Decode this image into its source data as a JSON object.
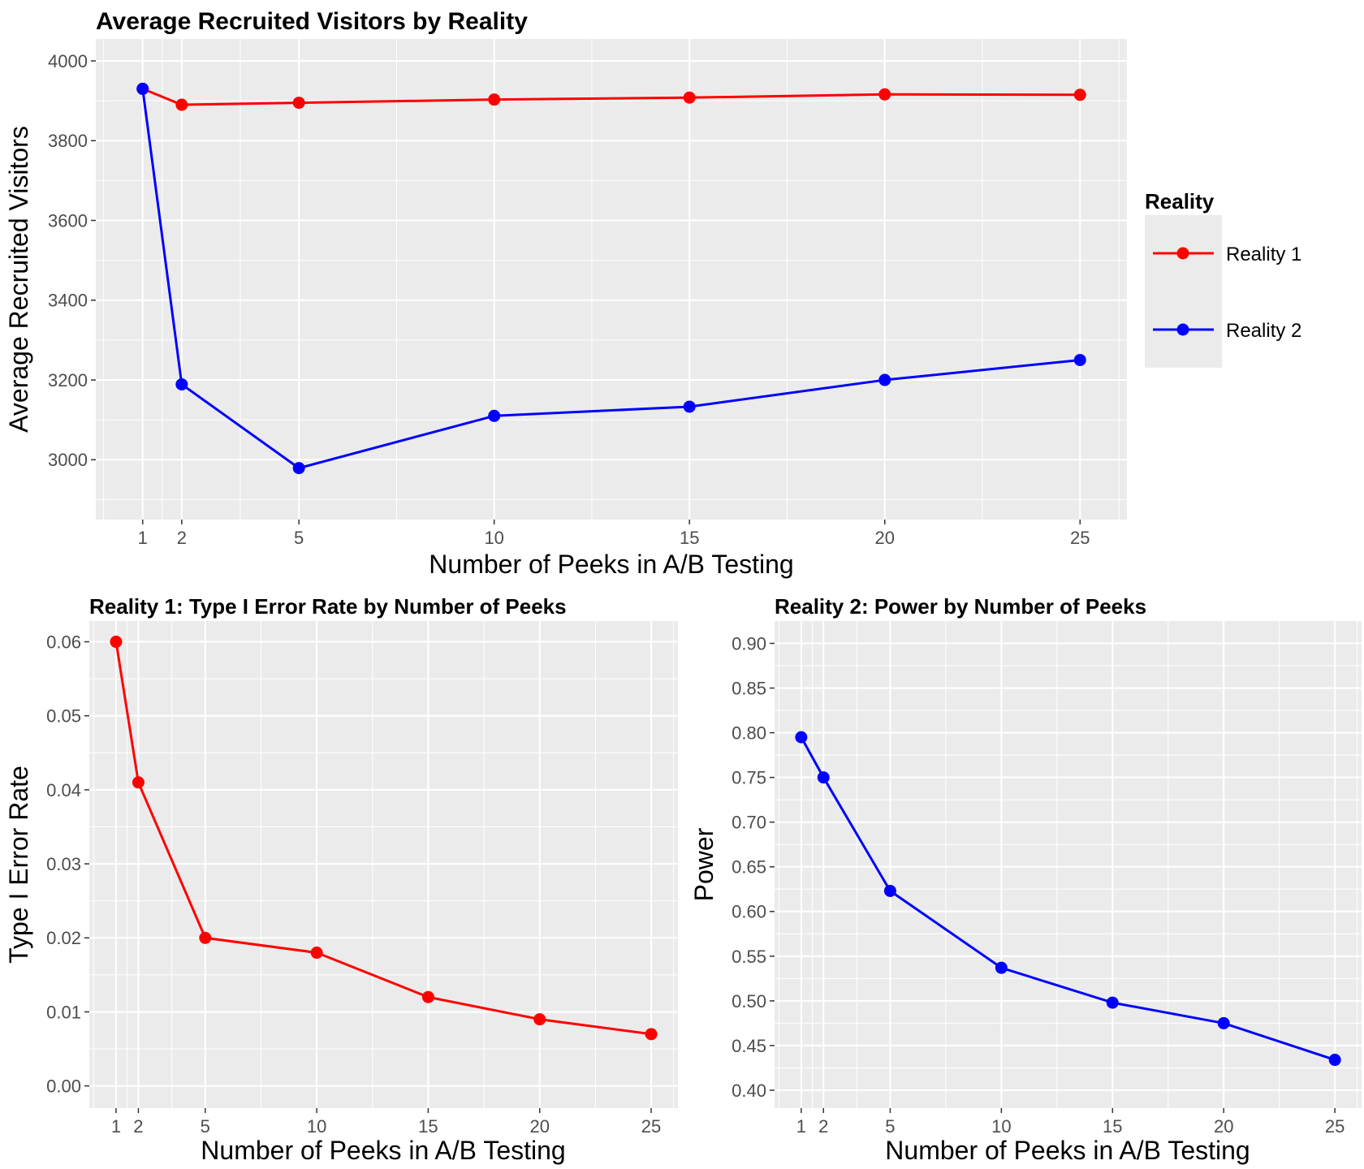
{
  "chart_data": [
    {
      "type": "line",
      "title": "Average Recruited Visitors by Reality",
      "xlabel": "Number of Peeks in A/B Testing",
      "ylabel": "Average Recruited Visitors",
      "x": [
        1,
        2,
        5,
        10,
        15,
        20,
        25
      ],
      "xticks": [
        1,
        2,
        5,
        10,
        15,
        20,
        25
      ],
      "yticks": [
        3000,
        3200,
        3400,
        3600,
        3800,
        4000
      ],
      "xlim": [
        -0.2,
        26.2
      ],
      "ylim": [
        2850,
        4055
      ],
      "grid": true,
      "legend": {
        "title": "Reality",
        "position": "right"
      },
      "series": [
        {
          "name": "Reality 1",
          "color": "#ff0000",
          "values": [
            3930,
            3890,
            3895,
            3903,
            3908,
            3916,
            3915
          ]
        },
        {
          "name": "Reality 2",
          "color": "#0000ff",
          "values": [
            3930,
            3189,
            2979,
            3110,
            3133,
            3200,
            3250
          ]
        }
      ]
    },
    {
      "type": "line",
      "title": "Reality 1: Type I Error Rate by Number of Peeks",
      "xlabel": "Number of Peeks in A/B Testing",
      "ylabel": "Type I Error Rate",
      "x": [
        1,
        2,
        5,
        10,
        15,
        20,
        25
      ],
      "xticks": [
        1,
        2,
        5,
        10,
        15,
        20,
        25
      ],
      "yticks": [
        0.0,
        0.01,
        0.02,
        0.03,
        0.04,
        0.05,
        0.06
      ],
      "ytick_labels": [
        "0.00",
        "0.01",
        "0.02",
        "0.03",
        "0.04",
        "0.05",
        "0.06"
      ],
      "xlim": [
        -0.2,
        26.2
      ],
      "ylim": [
        -0.003,
        0.0628
      ],
      "grid": true,
      "series": [
        {
          "color": "#ff0000",
          "values": [
            0.06,
            0.041,
            0.02,
            0.018,
            0.012,
            0.009,
            0.007
          ]
        }
      ]
    },
    {
      "type": "line",
      "title": "Reality 2: Power by Number of Peeks",
      "xlabel": "Number of Peeks in A/B Testing",
      "ylabel": "Power",
      "x": [
        1,
        2,
        5,
        10,
        15,
        20,
        25
      ],
      "xticks": [
        1,
        2,
        5,
        10,
        15,
        20,
        25
      ],
      "yticks": [
        0.4,
        0.45,
        0.5,
        0.55,
        0.6,
        0.65,
        0.7,
        0.75,
        0.8,
        0.85,
        0.9
      ],
      "ytick_labels": [
        "0.40",
        "0.45",
        "0.50",
        "0.55",
        "0.60",
        "0.65",
        "0.70",
        "0.75",
        "0.80",
        "0.85",
        "0.90"
      ],
      "xlim": [
        -0.2,
        26.2
      ],
      "ylim": [
        0.38,
        0.925
      ],
      "grid": true,
      "series": [
        {
          "color": "#0000ff",
          "values": [
            0.795,
            0.75,
            0.623,
            0.537,
            0.498,
            0.475,
            0.434
          ]
        }
      ]
    }
  ]
}
